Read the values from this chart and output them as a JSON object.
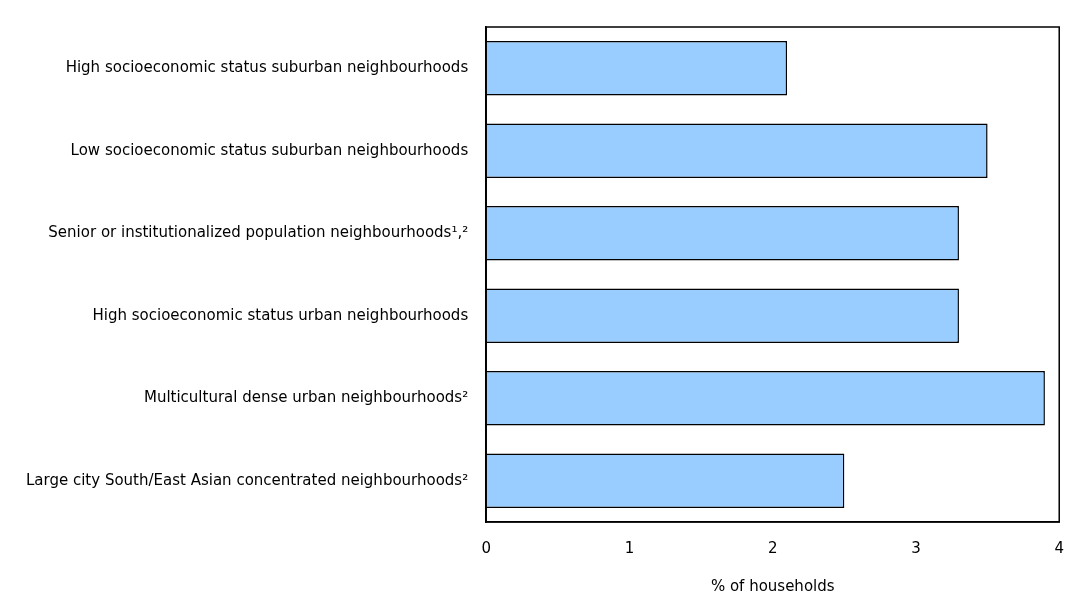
{
  "chart_data": {
    "type": "bar",
    "orientation": "horizontal",
    "xlabel": "% of households",
    "categories": [
      "High socioeconomic status suburban neighbourhoods",
      "Low socioeconomic status suburban neighbourhoods",
      "Senior or institutionalized population neighbourhoods¹,²",
      "High socioeconomic status urban neighbourhoods",
      "Multicultural dense urban neighbourhoods²",
      "Large city South/East Asian concentrated neighbourhoods²"
    ],
    "values": [
      2.1,
      3.5,
      3.3,
      3.3,
      3.9,
      2.5
    ],
    "color": "#99ccff",
    "xlim": [
      0,
      4
    ],
    "xticks": [
      0,
      1,
      2,
      3,
      4
    ],
    "grid": false,
    "legend": false
  }
}
